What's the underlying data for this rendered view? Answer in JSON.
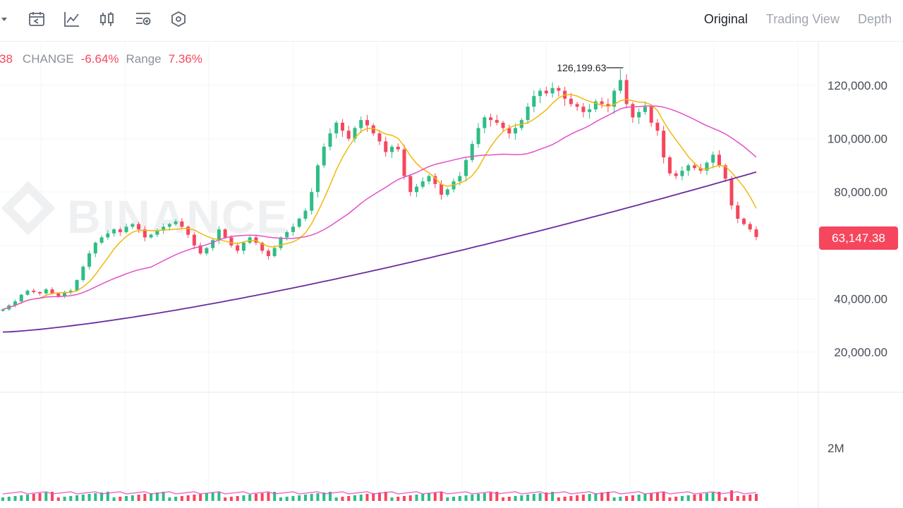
{
  "toolbar": {
    "icons": [
      {
        "name": "dropdown-caret-icon"
      },
      {
        "name": "calendar-icon"
      },
      {
        "name": "line-chart-icon"
      },
      {
        "name": "candlestick-icon"
      },
      {
        "name": "indicator-settings-icon"
      },
      {
        "name": "hexagon-settings-icon"
      }
    ],
    "tabs": [
      {
        "label": "Original",
        "active": true
      },
      {
        "label": "Trading View",
        "active": false
      },
      {
        "label": "Depth",
        "active": false
      }
    ]
  },
  "stats": {
    "last_fragment": "38",
    "change_label": "CHANGE",
    "change_value": "-6.64%",
    "range_label": "Range",
    "range_value": "7.36%"
  },
  "watermark": "BINANCE",
  "current_price": "63,147.38",
  "colors": {
    "up": "#2ebd85",
    "down": "#f6465d",
    "ma_short": "#f0b90b",
    "ma_mid": "#e44fc8",
    "ma_long": "#6a2c9e"
  },
  "chart_data": {
    "type": "candlestick",
    "y_ticks": [
      "120,000.00",
      "100,000.00",
      "80,000.00",
      "40,000.00",
      "20,000.00"
    ],
    "y_tick_values": [
      120000,
      100000,
      80000,
      40000,
      20000
    ],
    "volume_tick": "2M",
    "high_annotation": "126,199.63",
    "high_value": 126199.63,
    "ylim": [
      0,
      140000
    ],
    "closes": [
      36000,
      37500,
      39000,
      41500,
      43000,
      42500,
      42000,
      43500,
      42000,
      41000,
      42500,
      43000,
      47000,
      52000,
      57000,
      61000,
      63000,
      64500,
      66000,
      65000,
      67000,
      68000,
      66000,
      63000,
      64000,
      65500,
      67000,
      68000,
      69000,
      67000,
      64000,
      60000,
      57000,
      59000,
      62000,
      66000,
      63000,
      60000,
      58000,
      61000,
      63000,
      61000,
      58000,
      56000,
      59000,
      63000,
      65000,
      67000,
      70000,
      73000,
      80000,
      90000,
      97000,
      102000,
      106000,
      103000,
      100000,
      104000,
      107000,
      105000,
      102000,
      99000,
      95000,
      97000,
      96000,
      86000,
      80000,
      82000,
      84000,
      86000,
      83000,
      79000,
      81000,
      84000,
      86000,
      92000,
      98000,
      104000,
      108000,
      107000,
      106000,
      104000,
      102000,
      104000,
      107000,
      112000,
      116000,
      118000,
      117000,
      119000,
      118000,
      115000,
      113000,
      112000,
      110000,
      111000,
      114000,
      113000,
      112000,
      118000,
      122000,
      113000,
      108000,
      110000,
      112000,
      106000,
      103000,
      93000,
      87000,
      86000,
      88000,
      90000,
      89000,
      88000,
      91000,
      94000,
      90000,
      85000,
      75000,
      70000,
      68000,
      66000,
      63147
    ]
  }
}
